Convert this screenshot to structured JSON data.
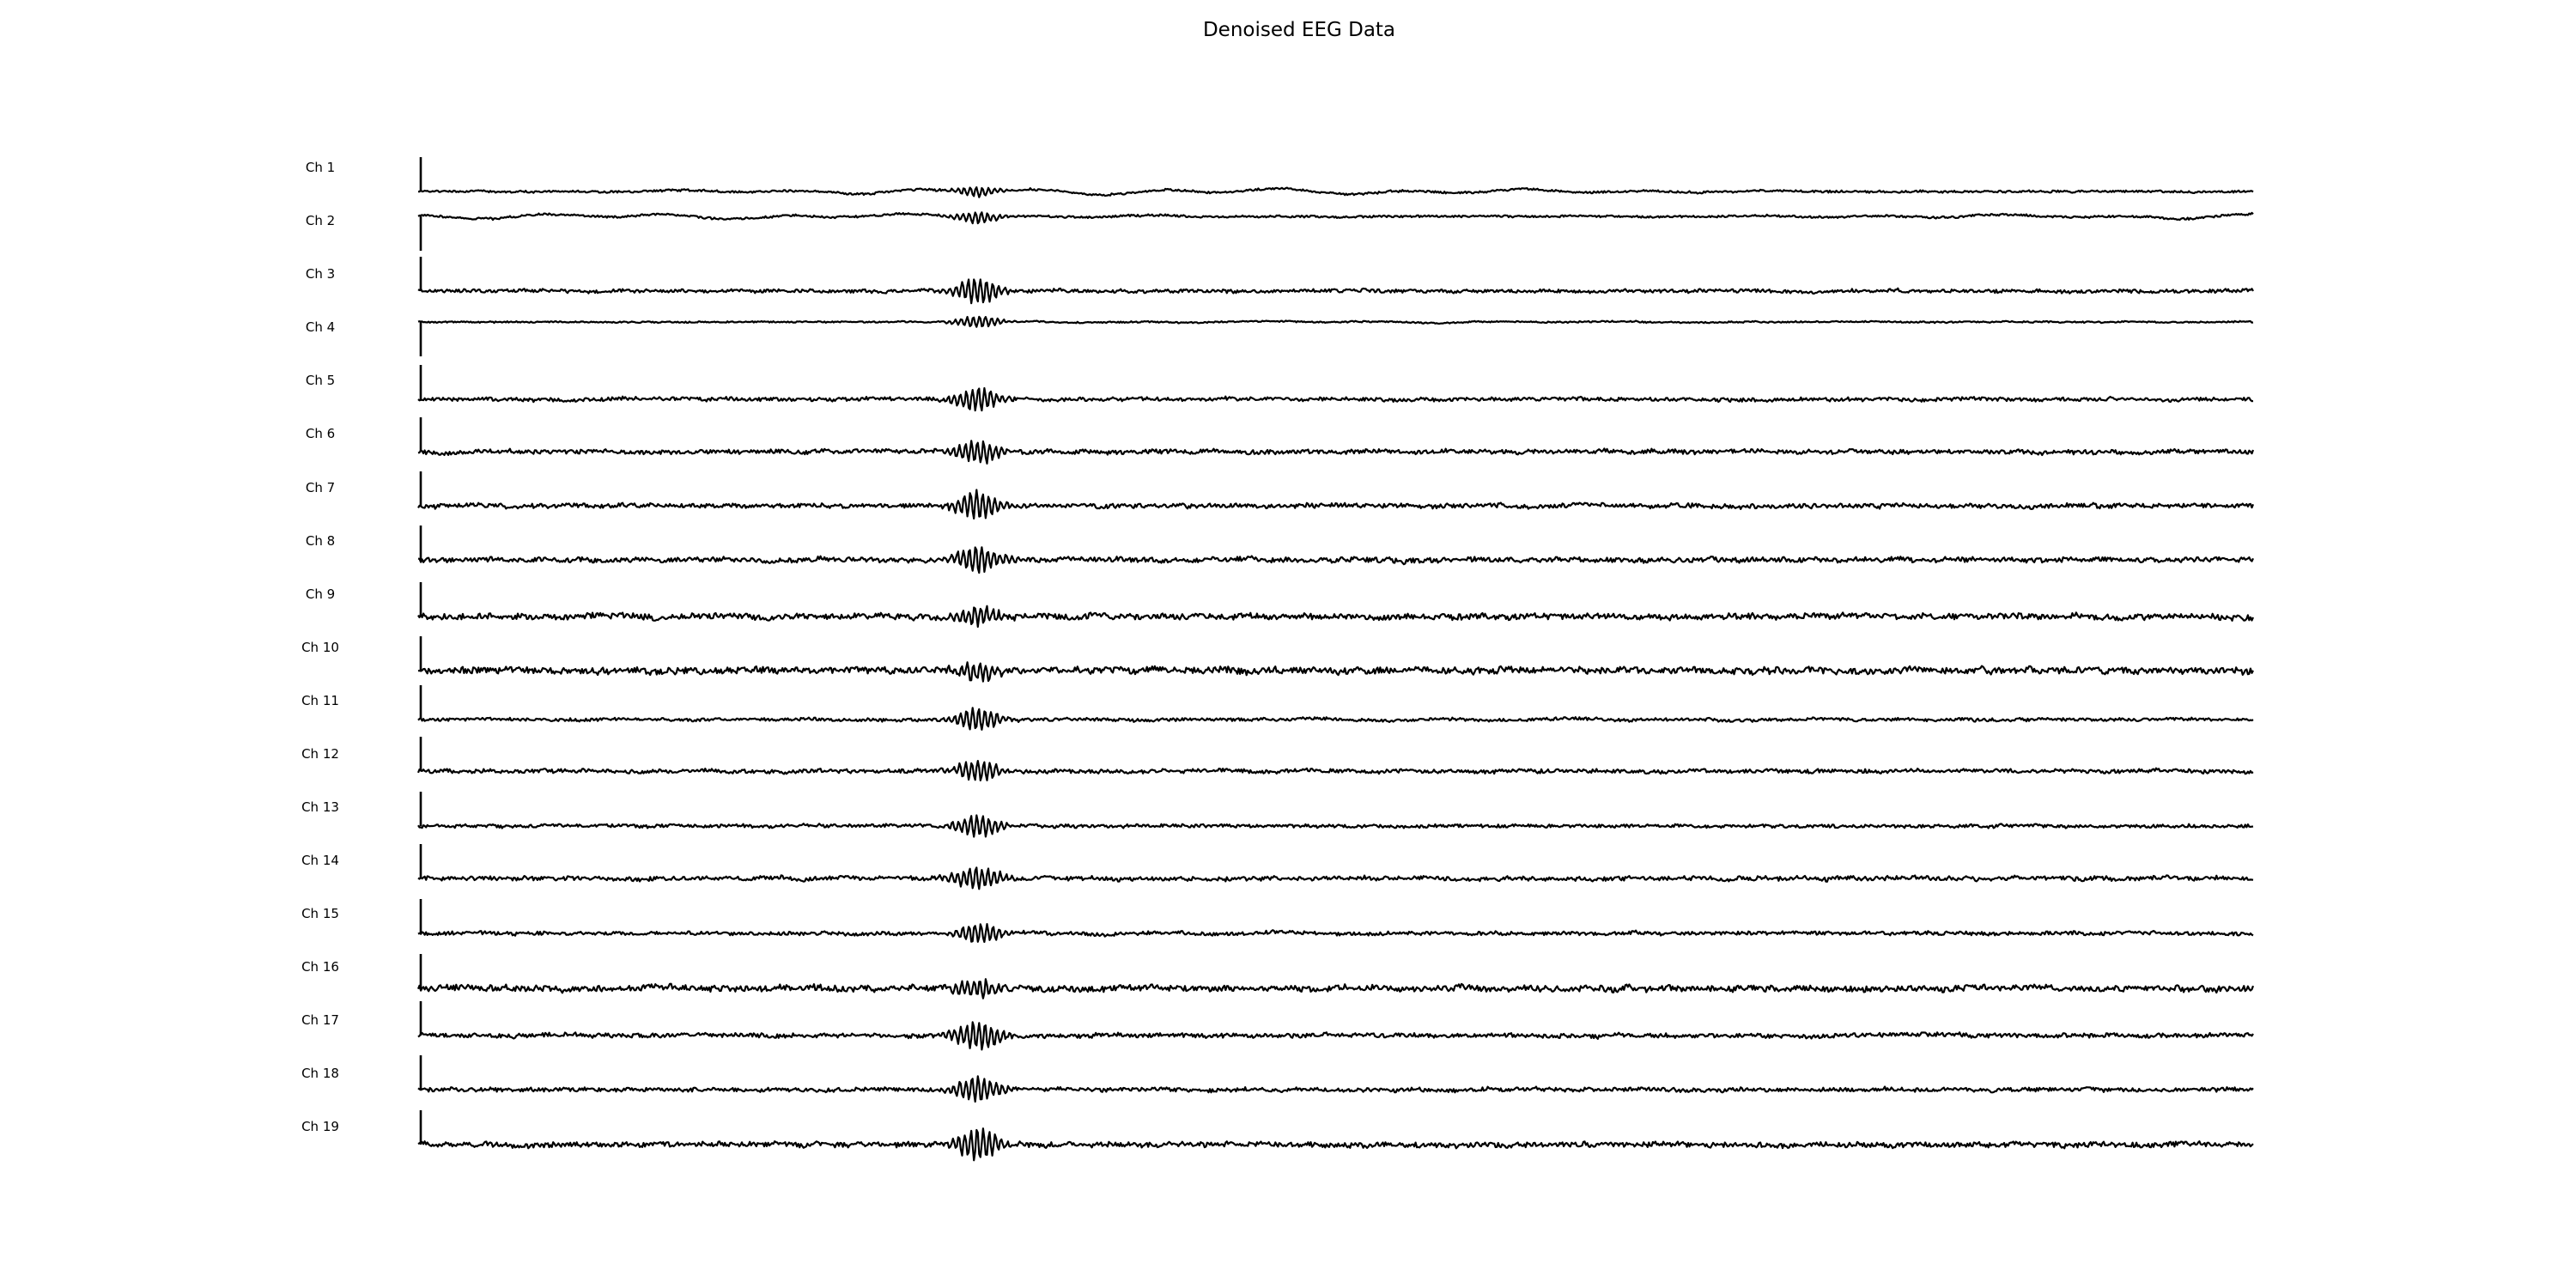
{
  "chart_data": {
    "type": "line",
    "title": "Denoised EEG Data",
    "xlabel": "",
    "ylabel": "",
    "grid": false,
    "legend": "none",
    "x_range": [
      0,
      1
    ],
    "line_color": "#000000",
    "channels": [
      {
        "label": "Ch 1",
        "noise": 0.35,
        "burst": 0.45,
        "slow": 1.2,
        "scale_bar": "up"
      },
      {
        "label": "Ch 2",
        "noise": 0.35,
        "burst": 0.55,
        "slow": 1.0,
        "scale_bar": "down"
      },
      {
        "label": "Ch 3",
        "noise": 0.55,
        "burst": 1.3,
        "slow": 0.2,
        "scale_bar": "up"
      },
      {
        "label": "Ch 4",
        "noise": 0.25,
        "burst": 0.6,
        "slow": 0.3,
        "scale_bar": "down"
      },
      {
        "label": "Ch 5",
        "noise": 0.6,
        "burst": 1.2,
        "slow": 0.2,
        "scale_bar": "up"
      },
      {
        "label": "Ch 6",
        "noise": 0.7,
        "burst": 1.2,
        "slow": 0.2,
        "scale_bar": "up"
      },
      {
        "label": "Ch 7",
        "noise": 0.75,
        "burst": 1.4,
        "slow": 0.2,
        "scale_bar": "up"
      },
      {
        "label": "Ch 8",
        "noise": 0.8,
        "burst": 1.4,
        "slow": 0.2,
        "scale_bar": "up"
      },
      {
        "label": "Ch 9",
        "noise": 0.95,
        "burst": 1.0,
        "slow": 0.2,
        "scale_bar": "up"
      },
      {
        "label": "Ch 10",
        "noise": 1.1,
        "burst": 0.9,
        "slow": 0.2,
        "scale_bar": "up"
      },
      {
        "label": "Ch 11",
        "noise": 0.5,
        "burst": 1.2,
        "slow": 0.4,
        "scale_bar": "up"
      },
      {
        "label": "Ch 12",
        "noise": 0.65,
        "burst": 1.1,
        "slow": 0.3,
        "scale_bar": "up"
      },
      {
        "label": "Ch 13",
        "noise": 0.55,
        "burst": 1.1,
        "slow": 0.2,
        "scale_bar": "up"
      },
      {
        "label": "Ch 14",
        "noise": 0.7,
        "burst": 1.2,
        "slow": 0.2,
        "scale_bar": "up"
      },
      {
        "label": "Ch 15",
        "noise": 0.6,
        "burst": 1.0,
        "slow": 0.2,
        "scale_bar": "up"
      },
      {
        "label": "Ch 16",
        "noise": 1.0,
        "burst": 0.9,
        "slow": 0.2,
        "scale_bar": "up"
      },
      {
        "label": "Ch 17",
        "noise": 0.7,
        "burst": 1.5,
        "slow": 0.2,
        "scale_bar": "up"
      },
      {
        "label": "Ch 18",
        "noise": 0.65,
        "burst": 1.3,
        "slow": 0.2,
        "scale_bar": "up"
      },
      {
        "label": "Ch 19",
        "noise": 0.85,
        "burst": 1.6,
        "slow": 0.2,
        "scale_bar": "up"
      }
    ]
  }
}
